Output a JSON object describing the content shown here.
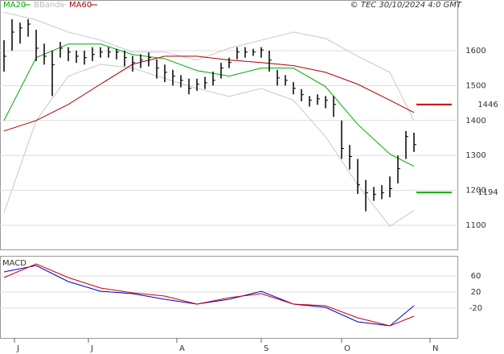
{
  "chart_data": [
    {
      "type": "ohlc",
      "legend": [
        "MA20",
        "BBands",
        "MA60"
      ],
      "credit": "© TEC 30/10/2024 4:0 GMT",
      "xlim": [
        -0.5,
        56.5
      ],
      "xticks": [
        {
          "value": 1.3,
          "label": "J"
        },
        {
          "value": 10.5,
          "label": "J"
        },
        {
          "value": 21.5,
          "label": "A"
        },
        {
          "value": 32,
          "label": "S"
        },
        {
          "value": 42,
          "label": "O"
        },
        {
          "value": 53,
          "label": "N"
        }
      ],
      "ylim": [
        1031,
        1745
      ],
      "yticks": [
        1100,
        1200,
        1300,
        1400,
        1500,
        1600
      ],
      "grid": true,
      "bars": {
        "color": "#000000",
        "high": [
          1630,
          1690,
          1680,
          1690,
          1660,
          1620,
          1600,
          1625,
          1610,
          1600,
          1600,
          1610,
          1610,
          1610,
          1605,
          1600,
          1585,
          1590,
          1595,
          1575,
          1560,
          1545,
          1530,
          1520,
          1520,
          1525,
          1540,
          1565,
          1580,
          1610,
          1610,
          1605,
          1610,
          1600,
          1545,
          1530,
          1510,
          1490,
          1470,
          1475,
          1470,
          1470,
          1400,
          1330,
          1290,
          1230,
          1210,
          1215,
          1240,
          1300,
          1370,
          1365
        ],
        "low": [
          1540,
          1600,
          1620,
          1640,
          1570,
          1560,
          1470,
          1580,
          1570,
          1565,
          1560,
          1570,
          1580,
          1580,
          1575,
          1555,
          1540,
          1550,
          1555,
          1520,
          1510,
          1500,
          1495,
          1475,
          1485,
          1490,
          1500,
          1520,
          1550,
          1575,
          1580,
          1585,
          1580,
          1540,
          1500,
          1500,
          1475,
          1455,
          1440,
          1445,
          1435,
          1410,
          1290,
          1260,
          1190,
          1140,
          1170,
          1175,
          1180,
          1220,
          1290,
          1310
        ],
        "close": [
          1584,
          1653,
          1665,
          1676,
          1607,
          1584,
          1560,
          1607,
          1596,
          1584,
          1580,
          1589,
          1596,
          1596,
          1596,
          1580,
          1566,
          1573,
          1580,
          1550,
          1538,
          1527,
          1515,
          1492,
          1504,
          1508,
          1515,
          1550,
          1566,
          1596,
          1596,
          1596,
          1602,
          1573,
          1522,
          1515,
          1492,
          1474,
          1458,
          1462,
          1458,
          1446,
          1320,
          1297,
          1216,
          1193,
          1189,
          1193,
          1205,
          1262,
          1354,
          1331
        ]
      },
      "series": [
        {
          "name": "BBands upper",
          "color": "#c8c8c8",
          "x": [
            0,
            4,
            8,
            12,
            16,
            20,
            24,
            28,
            32,
            36,
            40,
            44,
            48,
            51
          ],
          "values": [
            1710,
            1688,
            1653,
            1630,
            1596,
            1596,
            1573,
            1607,
            1630,
            1653,
            1635,
            1584,
            1538,
            1400
          ]
        },
        {
          "name": "BBands lower",
          "color": "#c8c8c8",
          "x": [
            0,
            4,
            8,
            12,
            16,
            20,
            24,
            28,
            32,
            36,
            40,
            44,
            48,
            51
          ],
          "values": [
            1136,
            1400,
            1527,
            1561,
            1550,
            1520,
            1492,
            1469,
            1492,
            1458,
            1354,
            1216,
            1097,
            1143
          ]
        },
        {
          "name": "MA20",
          "color": "#00aa00",
          "x": [
            0,
            4,
            8,
            12,
            16,
            20,
            24,
            28,
            32,
            36,
            40,
            44,
            48,
            51
          ],
          "values": [
            1400,
            1580,
            1619,
            1619,
            1589,
            1577,
            1543,
            1527,
            1550,
            1550,
            1497,
            1389,
            1304,
            1269
          ]
        },
        {
          "name": "MA60",
          "color": "#aa0000",
          "x": [
            0,
            4,
            8,
            12,
            16,
            20,
            24,
            28,
            32,
            36,
            40,
            44,
            48,
            51
          ],
          "values": [
            1370,
            1400,
            1446,
            1504,
            1561,
            1584,
            1584,
            1573,
            1566,
            1557,
            1538,
            1504,
            1458,
            1423
          ]
        }
      ],
      "levels": [
        {
          "value": 1446,
          "label": "1446",
          "color": "#cc0000"
        },
        {
          "value": 1194,
          "label": "1194",
          "color": "#00aa00"
        }
      ]
    },
    {
      "type": "line",
      "title": "MACD",
      "xlim": [
        -0.5,
        56.5
      ],
      "ylim": [
        -94,
        110
      ],
      "yticks": [
        60,
        20,
        -20
      ],
      "grid": true,
      "series": [
        {
          "name": "MACD",
          "color": "#0000cc",
          "x": [
            0,
            4,
            8,
            12,
            16,
            20,
            24,
            28,
            32,
            36,
            40,
            44,
            48,
            51
          ],
          "values": [
            70,
            86,
            46,
            22,
            16,
            2,
            -10,
            2,
            22,
            -10,
            -18,
            -54,
            -64,
            -14
          ]
        },
        {
          "name": "Signal",
          "color": "#cc0000",
          "x": [
            0,
            4,
            8,
            12,
            16,
            20,
            24,
            28,
            32,
            36,
            40,
            44,
            48,
            51
          ],
          "values": [
            56,
            90,
            56,
            30,
            18,
            10,
            -10,
            6,
            16,
            -10,
            -14,
            -44,
            -64,
            -40
          ]
        }
      ]
    }
  ]
}
